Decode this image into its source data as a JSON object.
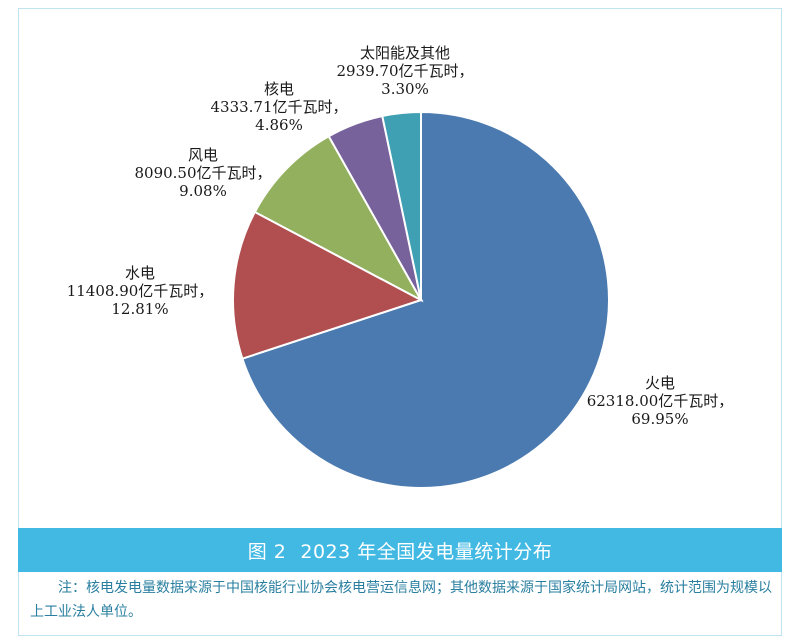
{
  "chart_data": {
    "type": "pie",
    "slices": [
      {
        "name": "火电",
        "value": 62318.0,
        "value_text": "62318.00亿千瓦时，",
        "percent_text": "69.95%",
        "color": "#4a7aaf"
      },
      {
        "name": "水电",
        "value": 11408.9,
        "value_text": "11408.90亿千瓦时，",
        "percent_text": "12.81%",
        "color": "#b04e50"
      },
      {
        "name": "风电",
        "value": 8090.5,
        "value_text": "8090.50亿千瓦时，",
        "percent_text": "9.08%",
        "color": "#92b05e"
      },
      {
        "name": "核电",
        "value": 4333.71,
        "value_text": "4333.71亿千瓦时，",
        "percent_text": "4.86%",
        "color": "#77629c"
      },
      {
        "name": "太阳能及其他",
        "value": 2939.7,
        "value_text": "2939.70亿千瓦时，",
        "percent_text": "3.30%",
        "color": "#3f9fb3"
      }
    ],
    "start_angle_deg": 0,
    "direction": "clockwise-from-top"
  },
  "caption": {
    "figure_label": "图 2",
    "title": "2023 年全国发电量统计分布"
  },
  "note": "注：核电发电量数据来源于中国核能行业协会核电营运信息网；其他数据来源于国家统计局网站，统计范围为规模以上工业法人单位。",
  "colors": {
    "caption_bar": "#42b9e3",
    "note_text": "#2a7fa0"
  }
}
